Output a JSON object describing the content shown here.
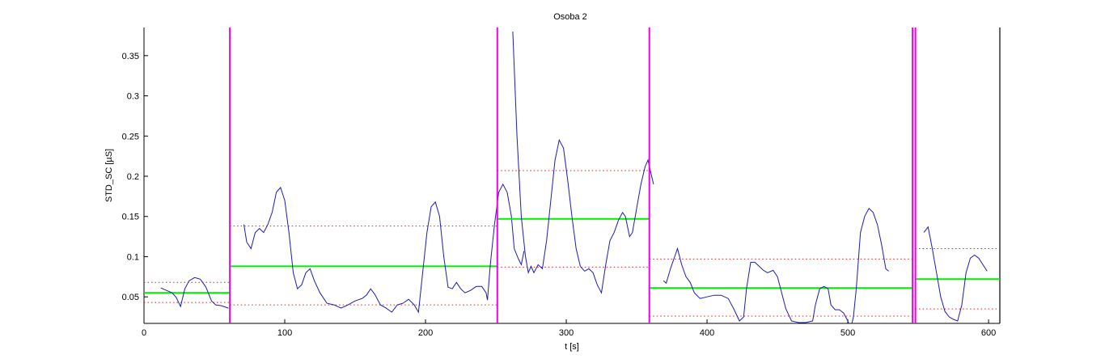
{
  "chart_data": {
    "type": "line",
    "title": "Osoba 2",
    "xlabel": "t [s]",
    "ylabel": "STD_SC [µS]",
    "xlim": [
      0,
      608
    ],
    "ylim": [
      0.017,
      0.385
    ],
    "xticks": [
      0,
      100,
      200,
      300,
      400,
      500,
      600
    ],
    "yticks": [
      0.05,
      0.1,
      0.15,
      0.2,
      0.25,
      0.3,
      0.35
    ],
    "grid": false,
    "colors": {
      "signal": "#1c1cb0",
      "mean": "#00ee00",
      "band": "#dd2222",
      "boundary": "#ee00ee",
      "axis": "#000000"
    },
    "boundaries": [
      61,
      251,
      359,
      546,
      548
    ],
    "segments": [
      {
        "t_start": 0,
        "t_end": 61,
        "mean": 0.055,
        "upper": 0.068,
        "lower": 0.043,
        "signal": [
          [
            12,
            0.061
          ],
          [
            16,
            0.058
          ],
          [
            20,
            0.055
          ],
          [
            23,
            0.049
          ],
          [
            26,
            0.038
          ],
          [
            29,
            0.06
          ],
          [
            32,
            0.07
          ],
          [
            36,
            0.074
          ],
          [
            40,
            0.072
          ],
          [
            44,
            0.062
          ],
          [
            48,
            0.045
          ],
          [
            51,
            0.04
          ],
          [
            55,
            0.039
          ],
          [
            60,
            0.036
          ]
        ]
      },
      {
        "t_start": 61,
        "t_end": 251,
        "mean": 0.088,
        "upper": 0.138,
        "lower": 0.04,
        "signal": [
          [
            71,
            0.14
          ],
          [
            73,
            0.118
          ],
          [
            76,
            0.11
          ],
          [
            79,
            0.13
          ],
          [
            82,
            0.135
          ],
          [
            85,
            0.13
          ],
          [
            88,
            0.14
          ],
          [
            91,
            0.155
          ],
          [
            94,
            0.18
          ],
          [
            97,
            0.186
          ],
          [
            100,
            0.17
          ],
          [
            103,
            0.13
          ],
          [
            106,
            0.08
          ],
          [
            109,
            0.06
          ],
          [
            112,
            0.065
          ],
          [
            115,
            0.08
          ],
          [
            118,
            0.085
          ],
          [
            121,
            0.07
          ],
          [
            125,
            0.055
          ],
          [
            130,
            0.042
          ],
          [
            135,
            0.04
          ],
          [
            140,
            0.036
          ],
          [
            145,
            0.04
          ],
          [
            150,
            0.045
          ],
          [
            155,
            0.048
          ],
          [
            158,
            0.052
          ],
          [
            161,
            0.06
          ],
          [
            164,
            0.053
          ],
          [
            168,
            0.04
          ],
          [
            172,
            0.036
          ],
          [
            176,
            0.031
          ],
          [
            180,
            0.04
          ],
          [
            184,
            0.042
          ],
          [
            188,
            0.047
          ],
          [
            192,
            0.04
          ],
          [
            195,
            0.031
          ],
          [
            198,
            0.08
          ],
          [
            201,
            0.13
          ],
          [
            204,
            0.162
          ],
          [
            207,
            0.168
          ],
          [
            210,
            0.15
          ],
          [
            213,
            0.1
          ],
          [
            216,
            0.062
          ],
          [
            219,
            0.06
          ],
          [
            222,
            0.068
          ],
          [
            225,
            0.06
          ],
          [
            228,
            0.055
          ],
          [
            232,
            0.058
          ],
          [
            236,
            0.063
          ],
          [
            240,
            0.063
          ],
          [
            243,
            0.055
          ],
          [
            244,
            0.046
          ],
          [
            246,
            0.09
          ],
          [
            249,
            0.14
          ],
          [
            252,
            0.18
          ],
          [
            255,
            0.19
          ],
          [
            258,
            0.18
          ],
          [
            261,
            0.15
          ],
          [
            263,
            0.11
          ],
          [
            266,
            0.097
          ],
          [
            268,
            0.09
          ],
          [
            270,
            0.107
          ]
        ]
      },
      {
        "t_start": 251,
        "t_end": 359,
        "mean": 0.147,
        "upper": 0.207,
        "lower": 0.087,
        "signal": [
          [
            262,
            0.38
          ],
          [
            265,
            0.25
          ],
          [
            268,
            0.15
          ],
          [
            271,
            0.1
          ],
          [
            273,
            0.08
          ],
          [
            275,
            0.088
          ],
          [
            277,
            0.08
          ],
          [
            280,
            0.09
          ],
          [
            283,
            0.085
          ],
          [
            286,
            0.12
          ],
          [
            289,
            0.17
          ],
          [
            292,
            0.22
          ],
          [
            295,
            0.245
          ],
          [
            298,
            0.235
          ],
          [
            301,
            0.195
          ],
          [
            304,
            0.15
          ],
          [
            307,
            0.11
          ],
          [
            310,
            0.088
          ],
          [
            313,
            0.082
          ],
          [
            316,
            0.085
          ],
          [
            319,
            0.08
          ],
          [
            322,
            0.065
          ],
          [
            325,
            0.055
          ],
          [
            328,
            0.09
          ],
          [
            331,
            0.12
          ],
          [
            334,
            0.13
          ],
          [
            337,
            0.145
          ],
          [
            340,
            0.155
          ],
          [
            342,
            0.15
          ],
          [
            345,
            0.125
          ],
          [
            347,
            0.13
          ],
          [
            350,
            0.16
          ],
          [
            353,
            0.19
          ],
          [
            356,
            0.212
          ],
          [
            358,
            0.22
          ],
          [
            360,
            0.205
          ],
          [
            362,
            0.19
          ]
        ]
      },
      {
        "t_start": 359,
        "t_end": 546,
        "mean": 0.061,
        "upper": 0.097,
        "lower": 0.026,
        "signal": [
          [
            369,
            0.07
          ],
          [
            371,
            0.067
          ],
          [
            374,
            0.085
          ],
          [
            377,
            0.1
          ],
          [
            379,
            0.11
          ],
          [
            382,
            0.09
          ],
          [
            385,
            0.075
          ],
          [
            388,
            0.068
          ],
          [
            391,
            0.055
          ],
          [
            395,
            0.048
          ],
          [
            400,
            0.05
          ],
          [
            405,
            0.052
          ],
          [
            410,
            0.052
          ],
          [
            415,
            0.048
          ],
          [
            419,
            0.035
          ],
          [
            423,
            0.02
          ],
          [
            426,
            0.025
          ],
          [
            428,
            0.06
          ],
          [
            431,
            0.093
          ],
          [
            434,
            0.093
          ],
          [
            437,
            0.088
          ],
          [
            440,
            0.083
          ],
          [
            443,
            0.08
          ],
          [
            447,
            0.083
          ],
          [
            450,
            0.075
          ],
          [
            453,
            0.055
          ],
          [
            456,
            0.035
          ],
          [
            460,
            0.02
          ],
          [
            465,
            0.018
          ],
          [
            470,
            0.018
          ],
          [
            475,
            0.02
          ],
          [
            477,
            0.04
          ],
          [
            480,
            0.06
          ],
          [
            483,
            0.063
          ],
          [
            486,
            0.06
          ],
          [
            488,
            0.04
          ],
          [
            491,
            0.034
          ],
          [
            494,
            0.034
          ],
          [
            497,
            0.03
          ],
          [
            500,
            0.02
          ],
          [
            502,
            0.01
          ],
          [
            504,
            0.025
          ],
          [
            506,
            0.06
          ],
          [
            509,
            0.13
          ],
          [
            512,
            0.15
          ],
          [
            515,
            0.16
          ],
          [
            518,
            0.155
          ],
          [
            521,
            0.14
          ],
          [
            524,
            0.115
          ],
          [
            527,
            0.085
          ],
          [
            529,
            0.082
          ]
        ]
      },
      {
        "t_start": 548,
        "t_end": 608,
        "mean": 0.072,
        "upper": 0.11,
        "lower": 0.035,
        "signal": [
          [
            554,
            0.13
          ],
          [
            557,
            0.137
          ],
          [
            560,
            0.11
          ],
          [
            563,
            0.08
          ],
          [
            566,
            0.05
          ],
          [
            569,
            0.032
          ],
          [
            572,
            0.025
          ],
          [
            575,
            0.022
          ],
          [
            578,
            0.02
          ],
          [
            581,
            0.04
          ],
          [
            584,
            0.08
          ],
          [
            587,
            0.098
          ],
          [
            590,
            0.102
          ],
          [
            593,
            0.098
          ],
          [
            596,
            0.09
          ],
          [
            599,
            0.082
          ]
        ]
      }
    ]
  }
}
